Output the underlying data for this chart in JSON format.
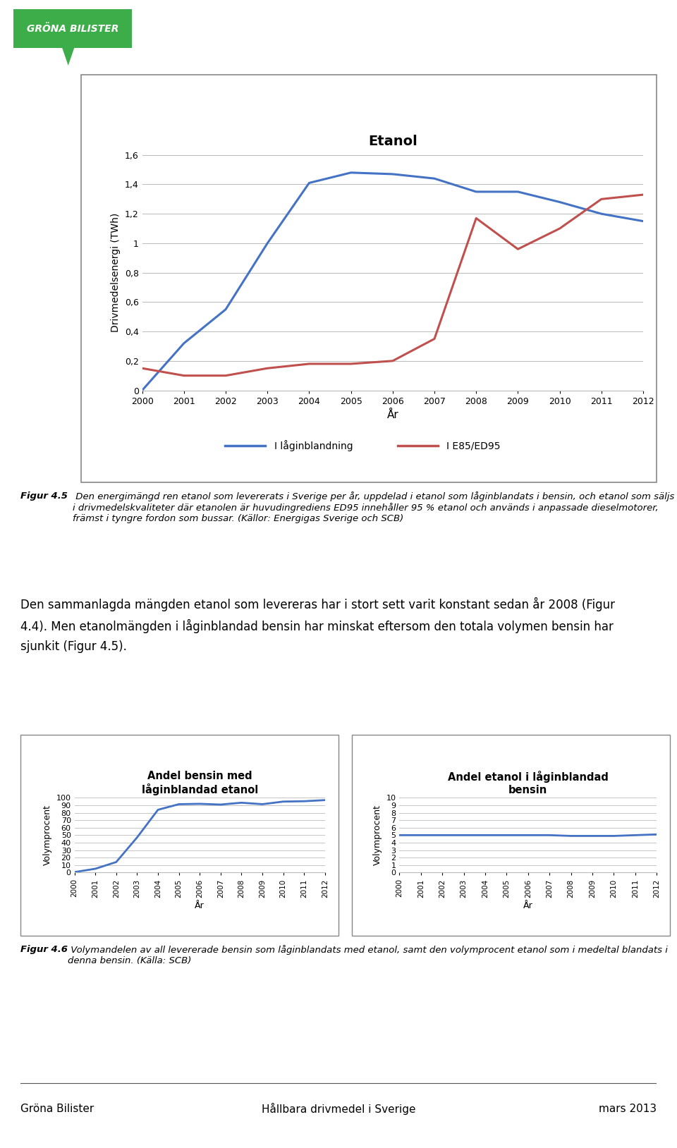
{
  "title_chart1": "Etanol",
  "years_main": [
    2000,
    2001,
    2002,
    2003,
    2004,
    2005,
    2006,
    2007,
    2008,
    2009,
    2010,
    2011,
    2012
  ],
  "blue_line": [
    0.0,
    0.32,
    0.55,
    1.0,
    1.41,
    1.48,
    1.47,
    1.44,
    1.35,
    1.35,
    1.28,
    1.2,
    1.15
  ],
  "red_line": [
    0.15,
    0.1,
    0.1,
    0.15,
    0.18,
    0.18,
    0.2,
    0.35,
    1.17,
    0.96,
    1.1,
    1.3,
    1.33
  ],
  "blue_color": "#4472C4",
  "red_color": "#C0504D",
  "ylabel_chart1": "Drivmedelsenergi (TWh)",
  "xlabel_chart1": "År",
  "yticks_chart1": [
    0,
    0.2,
    0.4,
    0.6,
    0.8,
    1.0,
    1.2,
    1.4,
    1.6
  ],
  "ytick_labels_chart1": [
    "0",
    "0,2",
    "0,4",
    "0,6",
    "0,8",
    "1",
    "1,2",
    "1,4",
    "1,6"
  ],
  "legend_blue": "I låginblandning",
  "legend_red": "I E85/ED95",
  "fig_caption1_bold": "Figur 4.5",
  "fig_caption1_rest": " Den energimängd ren etanol som levererats i Sverige per år, uppdelad i etanol som låginblandats i bensin, och etanol som säljs i drivmedelskvaliteter där etanolen är huvudingrediens ED95 innehåller 95 % etanol och används i anpassade dieselmotorer, främst i tyngre fordon som bussar. (Källor: Energigas Sverige och SCB)",
  "body_text": "Den sammanlagda mängden etanol som levereras har i stort sett varit konstant sedan år 2008 (Figur\n4.4). Men etanolmängden i låginblandad bensin har minskat eftersom den totala volymen bensin har\nsjunkit (Figur 4.5).",
  "title_chart2": "Andel bensin med\nlåginblandad etanol",
  "title_chart3": "Andel etanol i låginblandad\nbensin",
  "years_sub": [
    2000,
    2001,
    2002,
    2003,
    2004,
    2005,
    2006,
    2007,
    2008,
    2009,
    2010,
    2011,
    2012
  ],
  "bensin_pct": [
    0.5,
    5.0,
    14.0,
    47.0,
    84.0,
    91.5,
    92.0,
    91.0,
    93.5,
    91.5,
    95.0,
    95.5,
    97.0
  ],
  "etanol_pct": [
    5.0,
    5.0,
    5.0,
    5.0,
    5.0,
    5.0,
    5.0,
    5.0,
    4.9,
    4.9,
    4.9,
    5.0,
    5.1
  ],
  "ylabel_sub": "Volymprocent",
  "xlabel_sub": "År",
  "yticks_chart2": [
    0,
    10,
    20,
    30,
    40,
    50,
    60,
    70,
    80,
    90,
    100
  ],
  "yticks_chart3": [
    0,
    1,
    2,
    3,
    4,
    5,
    6,
    7,
    8,
    9,
    10
  ],
  "fig_caption2_bold": "Figur 4.6",
  "fig_caption2_rest": " Volymandelen av all levererade bensin som låginblandats med etanol, samt den volymprocent etanol som i medeltal blandats i denna bensin. (Källa: SCB)",
  "footer_left": "Gröna Bilister",
  "footer_center": "Hållbara drivmedel i Sverige",
  "footer_right": "mars 2013",
  "line_color_sub": "#4472C4",
  "background_color": "#FFFFFF",
  "logo_bg": "#3DAD4A",
  "logo_text": "GRÖNA BILISTER",
  "box_color": "#888888"
}
